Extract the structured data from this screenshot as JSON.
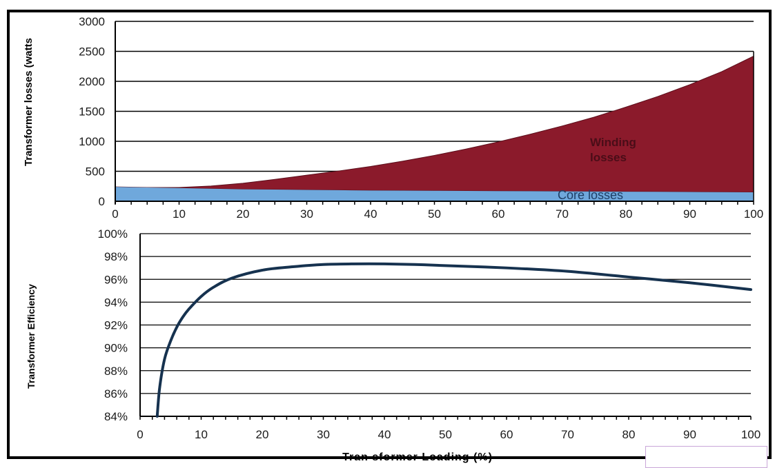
{
  "chart_data": [
    {
      "type": "area",
      "ylabel": "Transformer losses (watts",
      "xlim": [
        0,
        100
      ],
      "ylim": [
        0,
        3000
      ],
      "yticks": [
        0,
        500,
        1000,
        1500,
        2000,
        2500,
        3000
      ],
      "xticks": [
        0,
        10,
        20,
        30,
        40,
        50,
        60,
        70,
        80,
        90,
        100
      ],
      "grid": true,
      "x": [
        0,
        5,
        10,
        15,
        20,
        25,
        30,
        35,
        40,
        45,
        50,
        55,
        60,
        65,
        70,
        75,
        80,
        85,
        90,
        95,
        100
      ],
      "series": [
        {
          "name": "Core losses",
          "color": "#6fa8dc",
          "values": [
            240,
            230,
            220,
            210,
            200,
            195,
            190,
            185,
            180,
            178,
            175,
            172,
            170,
            168,
            165,
            162,
            160,
            158,
            155,
            152,
            150
          ]
        },
        {
          "name": "Winding losses",
          "color": "#8b1a2b",
          "values": [
            0,
            0,
            10,
            45,
            100,
            170,
            245,
            320,
            400,
            490,
            590,
            700,
            820,
            950,
            1090,
            1240,
            1410,
            1590,
            1790,
            2010,
            2270
          ]
        }
      ],
      "annotations": [
        "Winding\nlosses",
        "Core  losses"
      ]
    },
    {
      "type": "line",
      "xlabel": "Tran sformer Loading (%)",
      "ylabel": "Transformer Efficiency",
      "xlim": [
        0,
        100
      ],
      "ylim": [
        84,
        100
      ],
      "yticks": [
        "84%",
        "86%",
        "88%",
        "90%",
        "92%",
        "94%",
        "96%",
        "98%",
        "100%"
      ],
      "xticks": [
        0,
        10,
        20,
        30,
        40,
        50,
        60,
        70,
        80,
        90,
        100
      ],
      "grid": true,
      "series": [
        {
          "color": "#16324f",
          "x": [
            2.8,
            3.2,
            4,
            5,
            6,
            7,
            8,
            10,
            12,
            15,
            20,
            25,
            30,
            35,
            40,
            45,
            50,
            60,
            70,
            80,
            90,
            100
          ],
          "values": [
            84,
            86.5,
            89,
            90.6,
            91.8,
            92.7,
            93.4,
            94.5,
            95.3,
            96.1,
            96.8,
            97.1,
            97.3,
            97.35,
            97.35,
            97.3,
            97.2,
            97.0,
            96.7,
            96.2,
            95.7,
            95.1
          ]
        }
      ]
    }
  ]
}
